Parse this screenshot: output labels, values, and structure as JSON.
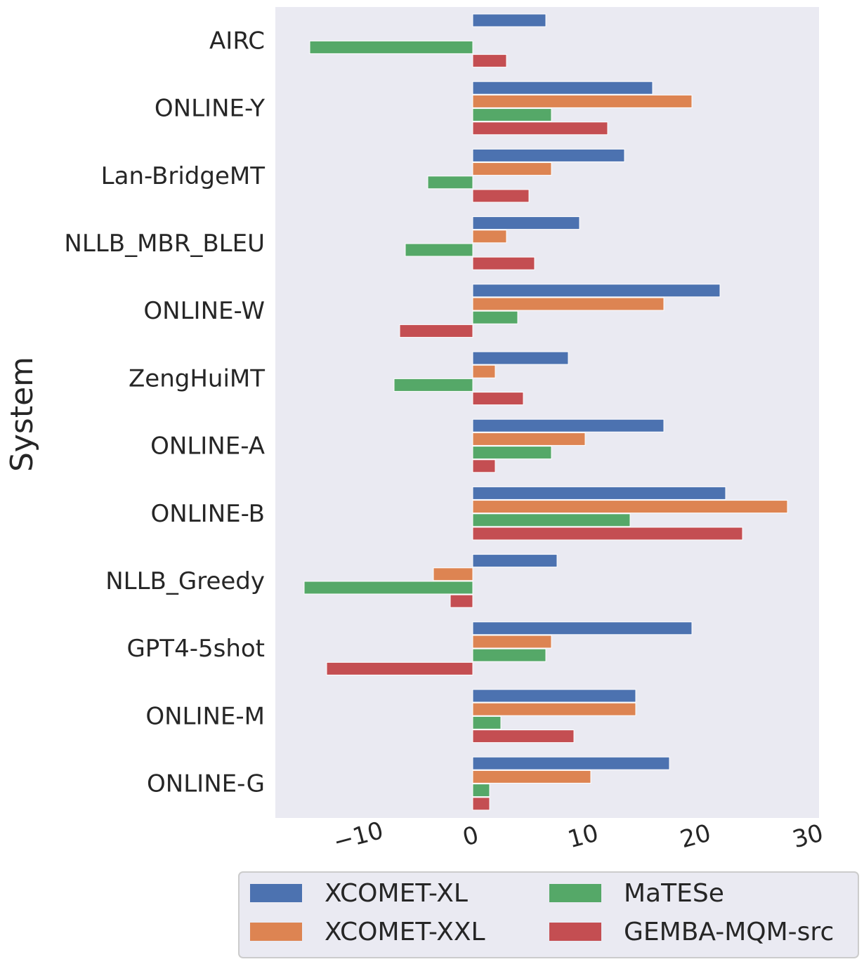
{
  "chart_data": {
    "type": "bar",
    "orientation": "horizontal",
    "ylabel": "System",
    "xlabel": "",
    "xlim": [
      -17,
      30.5
    ],
    "x_ticks": [
      -10,
      0,
      10,
      20,
      30
    ],
    "x_tick_labels": [
      "−10",
      "0",
      "10",
      "20",
      "30"
    ],
    "grid": false,
    "legend_position": "bottom",
    "categories": [
      "AIRC",
      "ONLINE-Y",
      "Lan-BridgeMT",
      "NLLB_MBR_BLEU",
      "ONLINE-W",
      "ZengHuiMT",
      "ONLINE-A",
      "ONLINE-B",
      "NLLB_Greedy",
      "GPT4-5shot",
      "ONLINE-M",
      "ONLINE-G"
    ],
    "series": [
      {
        "name": "XCOMET-XL",
        "color": "#4c72b0",
        "values": [
          6.5,
          16,
          13.5,
          9.5,
          22,
          8.5,
          17,
          22.5,
          7.5,
          19.5,
          14.5,
          17.5
        ]
      },
      {
        "name": "XCOMET-XXL",
        "color": "#dd8452",
        "values": [
          0,
          19.5,
          7,
          3,
          17,
          2,
          10,
          28,
          -3.5,
          7,
          14.5,
          10.5
        ]
      },
      {
        "name": "MaTESe",
        "color": "#55a868",
        "values": [
          -14.5,
          7,
          -4,
          -6,
          4,
          -7,
          7,
          14,
          -15,
          6.5,
          2.5,
          1.5
        ]
      },
      {
        "name": "GEMBA-MQM-src",
        "color": "#c44e52",
        "values": [
          3,
          12,
          5,
          5.5,
          -6.5,
          4.5,
          2,
          24,
          -2,
          -13,
          9,
          1.5
        ]
      }
    ]
  }
}
